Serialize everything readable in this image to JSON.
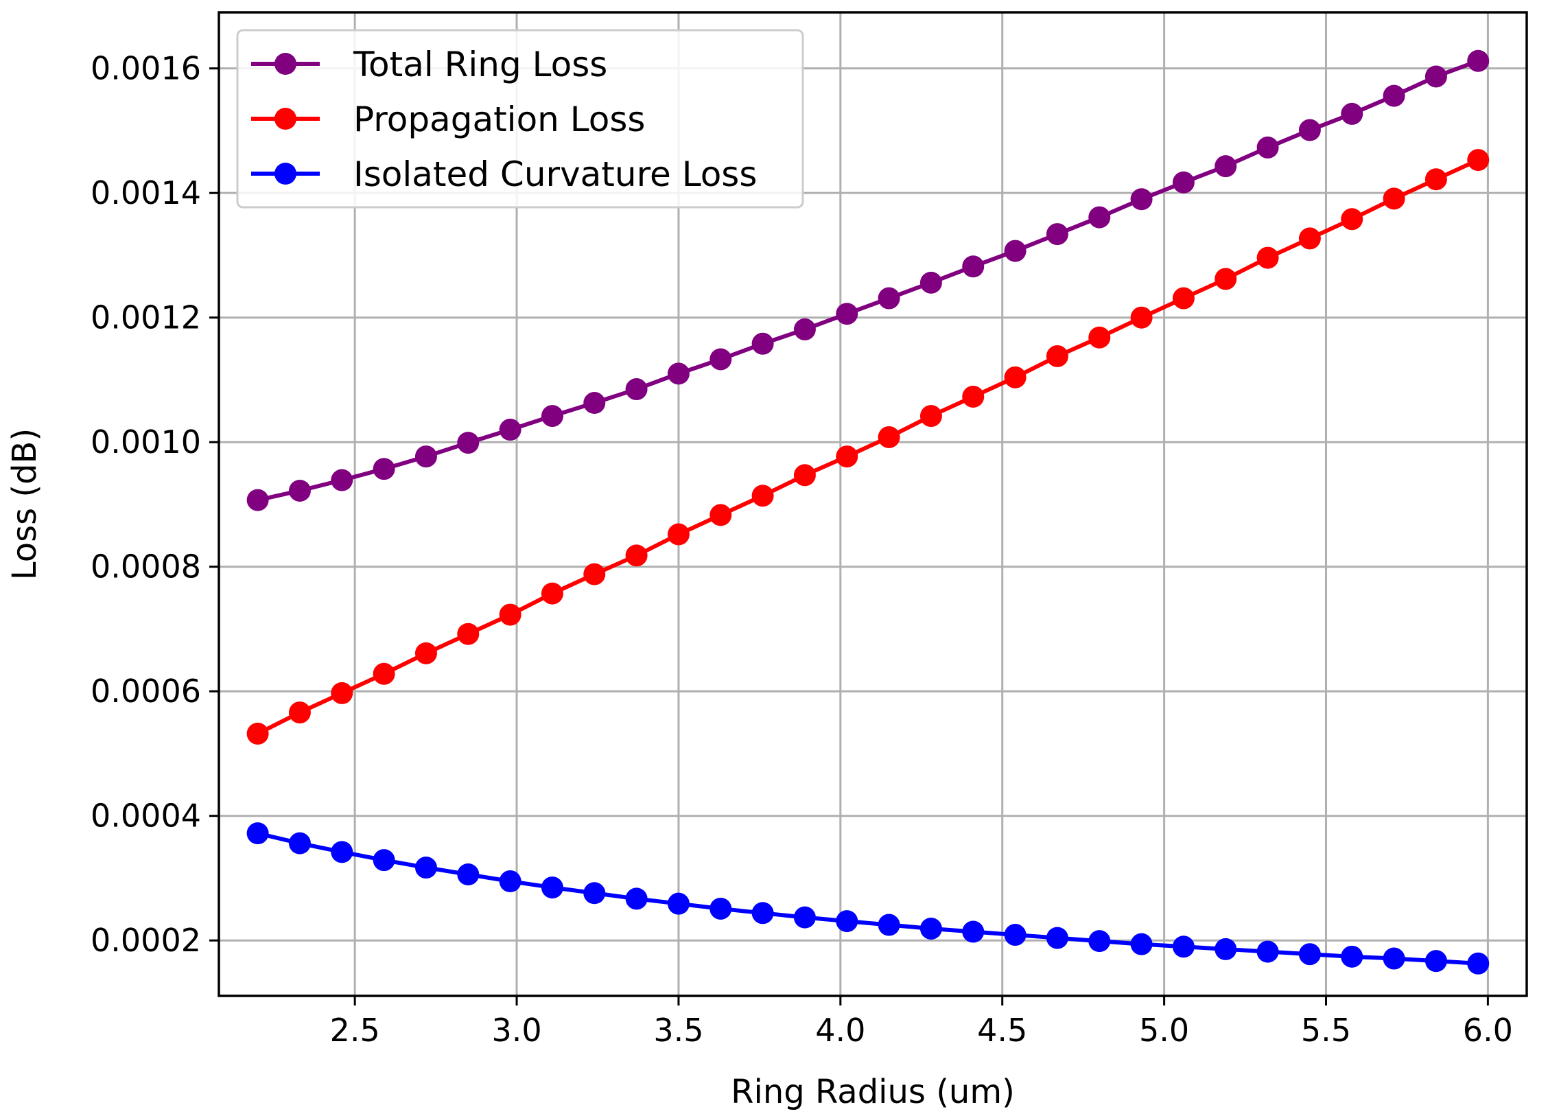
{
  "chart_data": {
    "type": "line",
    "title": "",
    "xlabel": "Ring Radius (um)",
    "ylabel": "Loss (dB)",
    "xlim": [
      2.08,
      6.12
    ],
    "ylim": [
      0.000111,
      0.00169
    ],
    "grid": true,
    "legend_position": "top-left",
    "x_ticks": [
      {
        "value": 2.5,
        "label": "2.5"
      },
      {
        "value": 3.0,
        "label": "3.0"
      },
      {
        "value": 3.5,
        "label": "3.5"
      },
      {
        "value": 4.0,
        "label": "4.0"
      },
      {
        "value": 4.5,
        "label": "4.5"
      },
      {
        "value": 5.0,
        "label": "5.0"
      },
      {
        "value": 5.5,
        "label": "5.5"
      },
      {
        "value": 6.0,
        "label": "6.0"
      }
    ],
    "y_ticks": [
      {
        "value": 0.0002,
        "label": "0.0002"
      },
      {
        "value": 0.0004,
        "label": "0.0004"
      },
      {
        "value": 0.0006,
        "label": "0.0006"
      },
      {
        "value": 0.0008,
        "label": "0.0008"
      },
      {
        "value": 0.001,
        "label": "0.0010"
      },
      {
        "value": 0.0012,
        "label": "0.0012"
      },
      {
        "value": 0.0014,
        "label": "0.0014"
      },
      {
        "value": 0.0016,
        "label": "0.0016"
      }
    ],
    "x": [
      2.2,
      2.33,
      2.46,
      2.59,
      2.72,
      2.85,
      2.98,
      3.11,
      3.24,
      3.37,
      3.5,
      3.63,
      3.76,
      3.89,
      4.02,
      4.15,
      4.28,
      4.41,
      4.54,
      4.67,
      4.8,
      4.93,
      5.06,
      5.19,
      5.32,
      5.45,
      5.58,
      5.71,
      5.84,
      5.97
    ],
    "series": [
      {
        "name": "Total Ring Loss",
        "color": "#800080",
        "values": [
          0.000907,
          0.000922,
          0.000939,
          0.000957,
          0.000977,
          0.000999,
          0.00102,
          0.001042,
          0.001063,
          0.001085,
          0.00111,
          0.001133,
          0.001158,
          0.001181,
          0.001206,
          0.001231,
          0.001256,
          0.001282,
          0.001307,
          0.001334,
          0.001361,
          0.00139,
          0.001417,
          0.001443,
          0.001473,
          0.001501,
          0.001527,
          0.001556,
          0.001587,
          0.001612
        ]
      },
      {
        "name": "Propagation Loss",
        "color": "#ff0000",
        "values": [
          0.000532,
          0.000566,
          0.000597,
          0.000628,
          0.000661,
          0.000692,
          0.000723,
          0.000757,
          0.000788,
          0.000818,
          0.000852,
          0.000883,
          0.000914,
          0.000947,
          0.000977,
          0.001008,
          0.001042,
          0.001073,
          0.001104,
          0.001138,
          0.001168,
          0.0012,
          0.001231,
          0.001262,
          0.001296,
          0.001327,
          0.001358,
          0.001391,
          0.001422,
          0.001453
        ]
      },
      {
        "name": "Isolated Curvature Loss",
        "color": "#0000ff",
        "values": [
          0.000372,
          0.000356,
          0.000342,
          0.000329,
          0.000317,
          0.000306,
          0.000295,
          0.000285,
          0.000276,
          0.000267,
          0.000259,
          0.000251,
          0.000244,
          0.000237,
          0.000231,
          0.000225,
          0.000219,
          0.000214,
          0.000209,
          0.000204,
          0.000199,
          0.000194,
          0.00019,
          0.000186,
          0.000182,
          0.000178,
          0.000174,
          0.000171,
          0.000167,
          0.000163
        ]
      }
    ]
  }
}
